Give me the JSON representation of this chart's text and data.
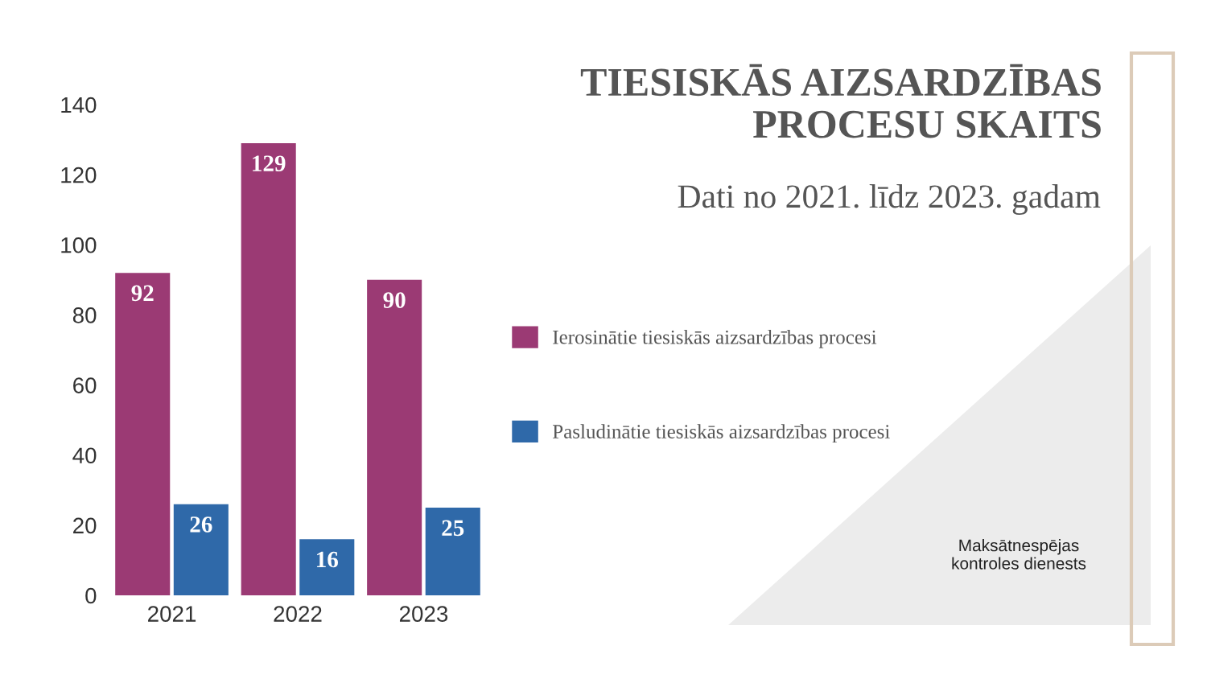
{
  "chart_data": {
    "type": "bar",
    "title": "TIESISKĀS AIZSARDZĪBAS PROCESU SKAITS",
    "subtitle": "Dati no 2021. līdz 2023. gadam",
    "categories": [
      "2021",
      "2022",
      "2023"
    ],
    "series": [
      {
        "name": "Ierosinātie tiesiskās aizsardzības procesi",
        "color": "#9b3a74",
        "values": [
          92,
          129,
          90
        ]
      },
      {
        "name": "Pasludinātie tiesiskās aizsardzības procesi",
        "color": "#2f69a9",
        "values": [
          26,
          16,
          25
        ]
      }
    ],
    "ylim": [
      0,
      140
    ],
    "yticks": [
      0,
      20,
      40,
      60,
      80,
      100,
      120,
      140
    ],
    "data_labels": true,
    "legend": "right",
    "annotations": [
      "Maksātnespējas kontroles dienests"
    ]
  }
}
